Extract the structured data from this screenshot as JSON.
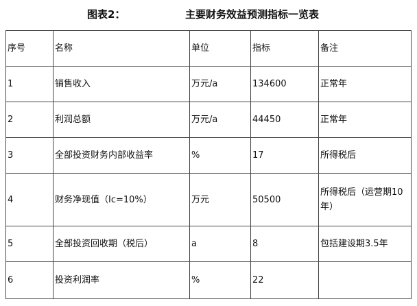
{
  "title": {
    "label": "图表2：",
    "text": "主要财务效益预测指标一览表"
  },
  "table": {
    "headers": [
      "序号",
      "名称",
      "单位",
      "指标",
      "备注"
    ],
    "rows": [
      [
        "1",
        "销售收入",
        "万元/a",
        "134600",
        "正常年"
      ],
      [
        "2",
        "利润总额",
        "万元/a",
        "44450",
        "正常年"
      ],
      [
        "3",
        "全部投资财务内部收益率",
        "%",
        "17",
        "所得税后"
      ],
      [
        "4",
        "财务净现值（Ic=10%）",
        "万元",
        "50500",
        "所得税后（运营期10年）"
      ],
      [
        "5",
        "全部投资回收期（税后）",
        "a",
        "8",
        "包括建设期3.5年"
      ],
      [
        "6",
        "投资利润率",
        "%",
        "22",
        ""
      ]
    ]
  }
}
